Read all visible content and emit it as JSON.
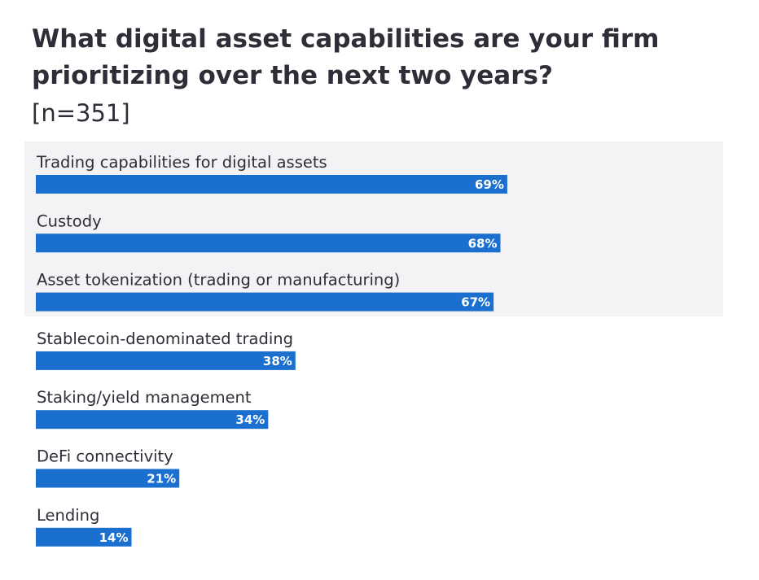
{
  "title": "What digital asset capabilities are your firm prioritizing over the next two years?",
  "subtitle": "[n=351]",
  "colors": {
    "bar": "#1a6fcf",
    "highlight_band": "#f3f3f5",
    "text": "#2e2e38",
    "value_label": "#ffffff"
  },
  "chart_data": {
    "type": "bar",
    "orientation": "horizontal",
    "title": "What digital asset capabilities are your firm prioritizing over the next two years?",
    "subtitle": "[n=351]",
    "categories": [
      "Trading capabilities for digital assets",
      "Custody",
      "Asset tokenization (trading or manufacturing)",
      "Stablecoin-denominated trading",
      "Staking/yield management",
      "DeFi connectivity",
      "Lending"
    ],
    "values": [
      69,
      68,
      67,
      38,
      34,
      21,
      14
    ],
    "value_labels": [
      "69%",
      "68%",
      "67%",
      "38%",
      "34%",
      "21%",
      "14%"
    ],
    "highlighted_count": 3,
    "xlim": [
      0,
      100
    ],
    "unit": "%",
    "xlabel": "",
    "ylabel": "",
    "grid": false
  }
}
